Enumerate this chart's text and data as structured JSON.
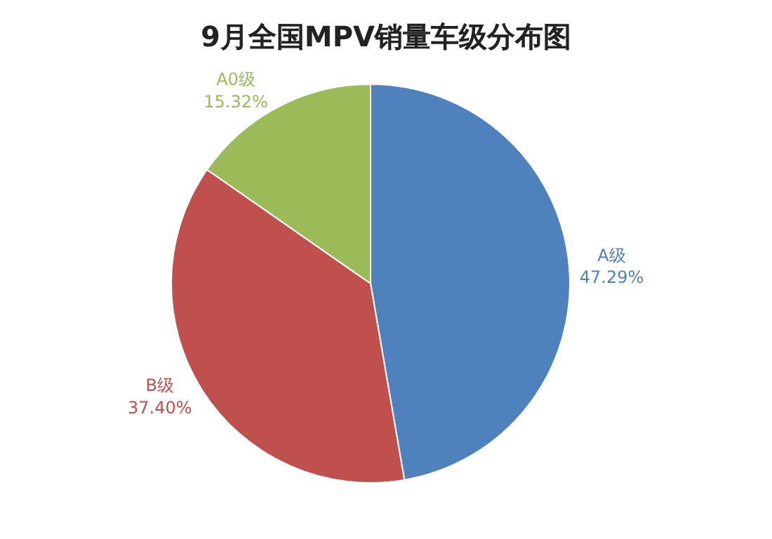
{
  "chart_data": {
    "type": "pie",
    "title": "9月全国MPV销量车级分布图",
    "categories": [
      "A级",
      "B级",
      "A0级"
    ],
    "values": [
      47.29,
      37.4,
      15.32
    ],
    "value_labels": [
      "47.29%",
      "37.40%",
      "15.32%"
    ],
    "colors": [
      "#4f81bd",
      "#c0504d",
      "#9bbb59"
    ],
    "legend": false
  }
}
